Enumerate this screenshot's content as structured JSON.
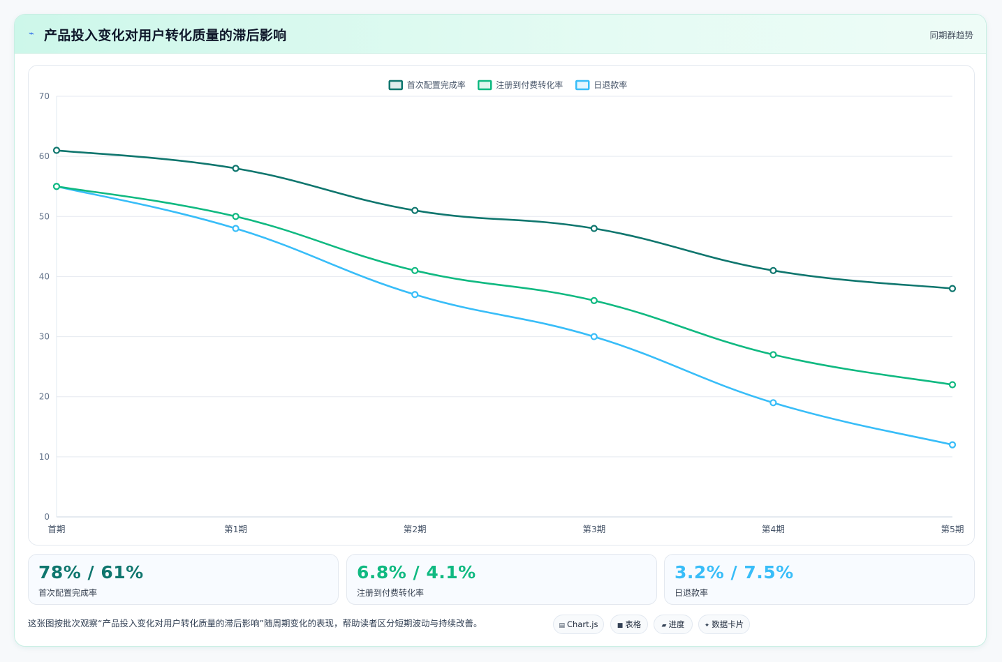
{
  "header": {
    "icon": "lightning-icon",
    "title": "产品投入变化对用户转化质量的滞后影响",
    "right_label": "同期群趋势"
  },
  "chart_data": {
    "type": "line",
    "categories": [
      "首期",
      "第1期",
      "第2期",
      "第3期",
      "第4期",
      "第5期"
    ],
    "series": [
      {
        "name": "首次配置完成率",
        "color": "#0f766e",
        "values": [
          61,
          58,
          51,
          48,
          41,
          38
        ]
      },
      {
        "name": "注册到付费转化率",
        "color": "#10b981",
        "values": [
          55,
          50,
          41,
          36,
          27,
          22
        ]
      },
      {
        "name": "日退款率",
        "color": "#38bdf8",
        "values": [
          55,
          48,
          37,
          30,
          19,
          12
        ]
      }
    ],
    "yticks": [
      0,
      10,
      20,
      30,
      40,
      50,
      60,
      70
    ],
    "ylim": [
      0,
      70
    ],
    "grid": true,
    "legend_position": "top-center",
    "smooth": true
  },
  "stats": [
    {
      "value": "78% / 61%",
      "label": "首次配置完成率",
      "color": "#0f766e"
    },
    {
      "value": "6.8% / 4.1%",
      "label": "注册到付费转化率",
      "color": "#10b981"
    },
    {
      "value": "3.2% / 7.5%",
      "label": "日退款率",
      "color": "#38bdf8"
    }
  ],
  "footer": {
    "text": "这张图按批次观察“产品投入变化对用户转化质量的滞后影响”随周期变化的表现，帮助读者区分短期波动与持续改善。"
  },
  "tags": [
    {
      "icon": "chart-icon",
      "label": "Chart.js"
    },
    {
      "icon": "table-icon",
      "label": "表格"
    },
    {
      "icon": "progress-icon",
      "label": "进度"
    },
    {
      "icon": "sparkle-icon",
      "label": "数据卡片"
    }
  ]
}
